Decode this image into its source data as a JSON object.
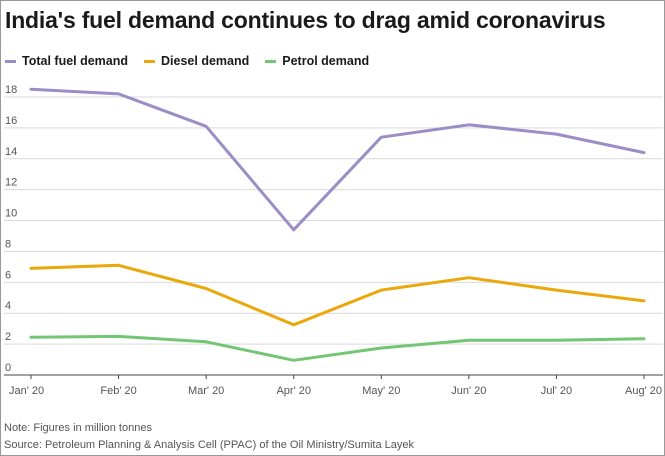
{
  "title": "India's fuel demand continues to drag amid coronavirus",
  "note": "Note: Figures in million tonnes",
  "source": "Source: Petroleum Planning & Analysis Cell (PPAC) of the Oil Ministry/Sumita Layek",
  "legend": [
    {
      "label": "Total fuel demand",
      "color": "#9b8dc6"
    },
    {
      "label": "Diesel demand",
      "color": "#eaa80b"
    },
    {
      "label": "Petrol demand",
      "color": "#72c674"
    }
  ],
  "chart_data": {
    "type": "line",
    "title": "India's fuel demand continues to drag amid coronavirus",
    "xlabel": "",
    "ylabel": "",
    "categories": [
      "Jan' 20",
      "Feb' 20",
      "Mar' 20",
      "Apr' 20",
      "May' 20",
      "Jun' 20",
      "Jul' 20",
      "Aug' 20"
    ],
    "ylim": [
      0,
      19
    ],
    "yticks": [
      0,
      2,
      4,
      6,
      8,
      10,
      12,
      14,
      16,
      18
    ],
    "grid": true,
    "legend_position": "top-left",
    "series": [
      {
        "name": "Total fuel demand",
        "color": "#9b8dc6",
        "values": [
          18.5,
          18.2,
          16.1,
          9.4,
          15.4,
          16.2,
          15.6,
          14.4
        ]
      },
      {
        "name": "Diesel demand",
        "color": "#eaa80b",
        "values": [
          6.9,
          7.1,
          5.6,
          3.25,
          5.5,
          6.3,
          5.5,
          4.8
        ]
      },
      {
        "name": "Petrol demand",
        "color": "#72c674",
        "values": [
          2.45,
          2.5,
          2.15,
          0.95,
          1.75,
          2.25,
          2.25,
          2.35
        ]
      }
    ]
  }
}
